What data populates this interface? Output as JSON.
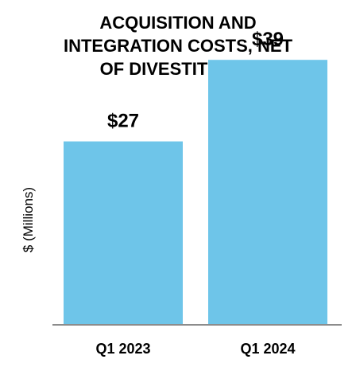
{
  "chart_data": {
    "type": "bar",
    "title_lines": [
      "ACQUISITION AND",
      "INTEGRATION COSTS, NET",
      "OF DIVESTITURES"
    ],
    "categories": [
      "Q1 2023",
      "Q1 2024"
    ],
    "values": [
      27,
      39
    ],
    "value_labels": [
      "$27",
      "$39"
    ],
    "xlabel": "",
    "ylabel": "$ (Millions)",
    "ylim": [
      0,
      45
    ],
    "grid": false,
    "legend": "none",
    "bar_color": "#6EC5E9",
    "axis_color": "#8C8C8C"
  }
}
